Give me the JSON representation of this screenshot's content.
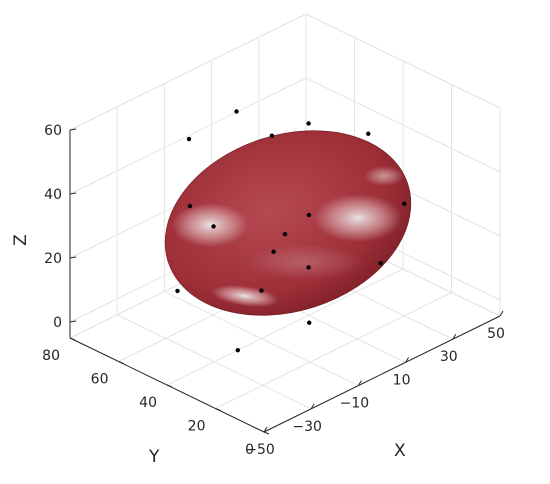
{
  "chart_data": {
    "type": "scatter",
    "subtype": "3d-ellipsoid-with-points",
    "title": "",
    "xlabel": "X",
    "ylabel": "Y",
    "zlabel": "Z",
    "xlim": [
      -50,
      50
    ],
    "ylim": [
      0,
      80
    ],
    "zlim": [
      -5,
      60
    ],
    "grid": true,
    "xticks": [
      -50,
      -30,
      -10,
      10,
      30,
      50
    ],
    "yticks": [
      0,
      20,
      40,
      60,
      80
    ],
    "zticks": [
      0,
      20,
      40,
      60
    ],
    "xtick_labels": [
      "−50",
      "−30",
      "−10",
      "10",
      "30",
      "50"
    ],
    "ytick_labels": [
      "0",
      "20",
      "40",
      "60",
      "80"
    ],
    "ztick_labels": [
      "0",
      "20",
      "40",
      "60"
    ],
    "surface": {
      "shape": "ellipsoid",
      "center": [
        0,
        40,
        25
      ],
      "semi_axes": [
        33,
        33,
        25
      ],
      "color": "#b03a42"
    },
    "point_color": "#000000",
    "points": [
      {
        "x": -30,
        "y": 50,
        "z": 40
      },
      {
        "x": -15,
        "y": 65,
        "z": 50
      },
      {
        "x": 0,
        "y": 60,
        "z": 55
      },
      {
        "x": 10,
        "y": 40,
        "z": 55
      },
      {
        "x": 15,
        "y": 60,
        "z": 42
      },
      {
        "x": 25,
        "y": 30,
        "z": 50
      },
      {
        "x": 30,
        "y": 20,
        "z": 30
      },
      {
        "x": 5,
        "y": 35,
        "z": 30
      },
      {
        "x": -20,
        "y": 50,
        "z": 30
      },
      {
        "x": -10,
        "y": 35,
        "z": 24
      },
      {
        "x": 0,
        "y": 40,
        "z": 24
      },
      {
        "x": -25,
        "y": 60,
        "z": 8
      },
      {
        "x": -10,
        "y": 40,
        "z": 10
      },
      {
        "x": 10,
        "y": 40,
        "z": 10
      },
      {
        "x": 20,
        "y": 20,
        "z": 15
      },
      {
        "x": 0,
        "y": 30,
        "z": 0
      },
      {
        "x": -20,
        "y": 40,
        "z": -5
      }
    ]
  }
}
